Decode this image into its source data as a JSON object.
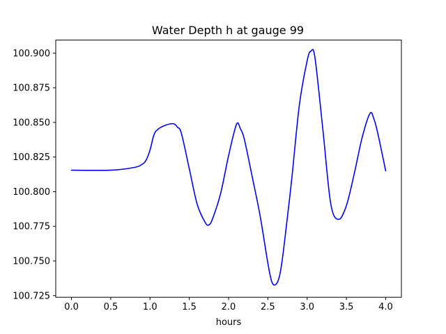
{
  "chart_data": {
    "type": "line",
    "title": "Water Depth h at gauge 99",
    "xlabel": "hours",
    "ylabel": "",
    "xlim": [
      -0.2,
      4.2
    ],
    "ylim": [
      100.7238,
      100.9094
    ],
    "xticks": [
      {
        "value": 0.0,
        "label": "0.0"
      },
      {
        "value": 0.5,
        "label": "0.5"
      },
      {
        "value": 1.0,
        "label": "1.0"
      },
      {
        "value": 1.5,
        "label": "1.5"
      },
      {
        "value": 2.0,
        "label": "2.0"
      },
      {
        "value": 2.5,
        "label": "2.5"
      },
      {
        "value": 3.0,
        "label": "3.0"
      },
      {
        "value": 3.5,
        "label": "3.5"
      },
      {
        "value": 4.0,
        "label": "4.0"
      }
    ],
    "yticks": [
      {
        "value": 100.725,
        "label": "100.725"
      },
      {
        "value": 100.75,
        "label": "100.750"
      },
      {
        "value": 100.775,
        "label": "100.775"
      },
      {
        "value": 100.8,
        "label": "100.800"
      },
      {
        "value": 100.825,
        "label": "100.825"
      },
      {
        "value": 100.85,
        "label": "100.850"
      },
      {
        "value": 100.875,
        "label": "100.875"
      },
      {
        "value": 100.9,
        "label": "100.900"
      }
    ],
    "grid": false,
    "series": [
      {
        "color": "#0000ff",
        "x": [
          0.0,
          0.5,
          0.8,
          0.9,
          0.95,
          1.0,
          1.05,
          1.1,
          1.2,
          1.3,
          1.35,
          1.4,
          1.5,
          1.6,
          1.7,
          1.75,
          1.8,
          1.9,
          2.0,
          2.1,
          2.15,
          2.2,
          2.3,
          2.4,
          2.5,
          2.55,
          2.6,
          2.65,
          2.7,
          2.8,
          2.9,
          3.0,
          3.05,
          3.1,
          3.2,
          3.3,
          3.4,
          3.5,
          3.6,
          3.7,
          3.8,
          3.85,
          3.9,
          4.0
        ],
        "y": [
          100.8155,
          100.8155,
          100.8175,
          100.8198,
          100.8228,
          100.83,
          100.841,
          100.845,
          100.848,
          100.849,
          100.8465,
          100.842,
          100.8165,
          100.791,
          100.778,
          100.776,
          100.781,
          100.799,
          100.826,
          100.8485,
          100.8455,
          100.838,
          100.811,
          100.783,
          100.7485,
          100.735,
          100.733,
          100.7395,
          100.758,
          100.807,
          100.862,
          100.8945,
          100.9015,
          100.8965,
          100.845,
          100.7915,
          100.78,
          100.79,
          100.813,
          100.839,
          100.8565,
          100.8525,
          100.842,
          100.815
        ]
      }
    ]
  }
}
